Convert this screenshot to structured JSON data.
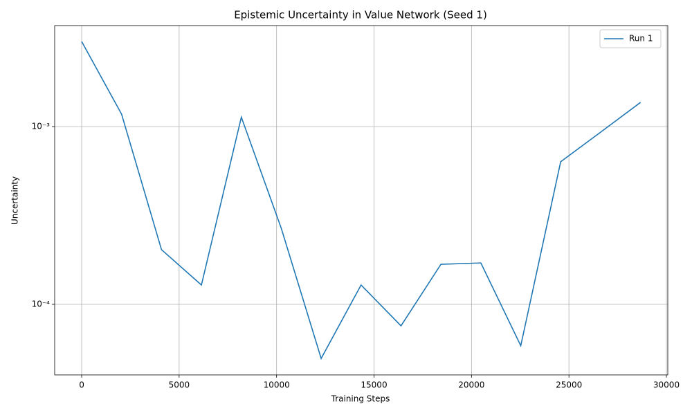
{
  "chart_data": {
    "type": "line",
    "title": "Epistemic Uncertainty in Value Network (Seed 1)",
    "xlabel": "Training Steps",
    "ylabel": "Uncertainty",
    "x": [
      0,
      2048,
      4096,
      6144,
      8192,
      10240,
      12288,
      14336,
      16384,
      18432,
      20480,
      22528,
      24576,
      26624,
      28672
    ],
    "series": [
      {
        "name": "Run 1",
        "color": "#1f77b4",
        "values": [
          0.00301,
          0.001175,
          0.000203,
          0.0001285,
          0.00113,
          0.000268,
          4.96e-05,
          0.0001285,
          7.57e-05,
          0.000168,
          0.000171,
          5.85e-05,
          0.000634,
          0.00093,
          0.001368
        ]
      }
    ],
    "xlim": [
      -1385,
      30071
    ],
    "xticks": [
      0,
      5000,
      10000,
      15000,
      20000,
      25000,
      30000
    ],
    "ylim": [
      4.01e-05,
      0.0037
    ],
    "ylog": true,
    "yticks": [
      {
        "value": 0.0001,
        "label": "10⁻⁴"
      },
      {
        "value": 0.001,
        "label": "10⁻³"
      }
    ],
    "grid": true,
    "legend": "upper right"
  }
}
